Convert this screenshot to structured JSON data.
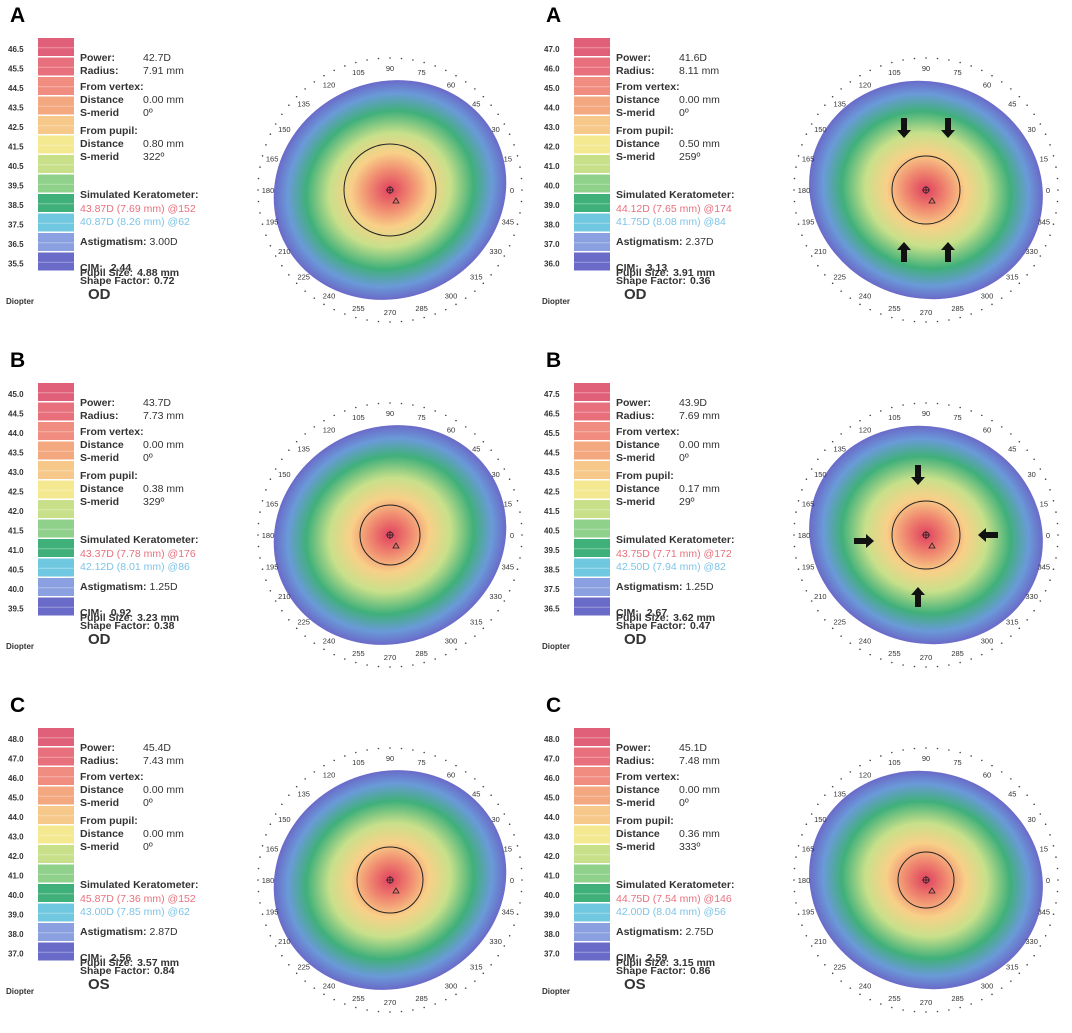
{
  "panels": [
    {
      "letter": "A",
      "scale": [
        "46.5",
        "45.5",
        "44.5",
        "43.5",
        "42.5",
        "41.5",
        "40.5",
        "39.5",
        "38.5",
        "37.5",
        "36.5",
        "35.5"
      ],
      "diopter": "Diopter",
      "power_label": "Power:",
      "power": "42.7D",
      "radius_label": "Radius:",
      "radius": "7.91 mm",
      "vertex_label": "From vertex:",
      "vertex_distance_label": "Distance",
      "vertex_distance": "0.00 mm",
      "vertex_smerid_label": "S-merid",
      "vertex_smerid": "0º",
      "pupil_from_label": "From pupil:",
      "pupil_distance_label": "Distance",
      "pupil_distance": "0.80 mm",
      "pupil_smerid_label": "S-merid",
      "pupil_smerid": "322º",
      "simk_label": "Simulated Keratometer:",
      "simk1": "43.87D (7.69 mm) @152",
      "simk2": "40.87D (8.26 mm) @62",
      "astig_label": "Astigmatism:",
      "astig": "3.00D",
      "cim_label": "CIM:",
      "cim": "2.44",
      "shape_label": "Shape Factor:",
      "shape": "0.72",
      "pupil_size_label": "Pupil Size:",
      "pupil_size": "4.88 mm",
      "eye": "OD"
    },
    {
      "letter": "A",
      "scale": [
        "47.0",
        "46.0",
        "45.0",
        "44.0",
        "43.0",
        "42.0",
        "41.0",
        "40.0",
        "39.0",
        "38.0",
        "37.0",
        "36.0"
      ],
      "diopter": "Diopter",
      "power_label": "Power:",
      "power": "41.6D",
      "radius_label": "Radius:",
      "radius": "8.11 mm",
      "vertex_label": "From vertex:",
      "vertex_distance_label": "Distance",
      "vertex_distance": "0.00 mm",
      "vertex_smerid_label": "S-merid",
      "vertex_smerid": "0º",
      "pupil_from_label": "From pupil:",
      "pupil_distance_label": "Distance",
      "pupil_distance": "0.50 mm",
      "pupil_smerid_label": "S-merid",
      "pupil_smerid": "259º",
      "simk_label": "Simulated Keratometer:",
      "simk1": "44.12D (7.65 mm) @174",
      "simk2": "41.75D (8.08 mm) @84",
      "astig_label": "Astigmatism:",
      "astig": "2.37D",
      "cim_label": "CIM:",
      "cim": "3.13",
      "shape_label": "Shape Factor:",
      "shape": "0.36",
      "pupil_size_label": "Pupil Size:",
      "pupil_size": "3.91 mm",
      "eye": "OD"
    },
    {
      "letter": "B",
      "scale": [
        "45.0",
        "44.5",
        "44.0",
        "43.5",
        "43.0",
        "42.5",
        "42.0",
        "41.5",
        "41.0",
        "40.5",
        "40.0",
        "39.5"
      ],
      "diopter": "Diopter",
      "power_label": "Power:",
      "power": "43.7D",
      "radius_label": "Radius:",
      "radius": "7.73 mm",
      "vertex_label": "From vertex:",
      "vertex_distance_label": "Distance",
      "vertex_distance": "0.00 mm",
      "vertex_smerid_label": "S-merid",
      "vertex_smerid": "0º",
      "pupil_from_label": "From pupil:",
      "pupil_distance_label": "Distance",
      "pupil_distance": "0.38 mm",
      "pupil_smerid_label": "S-merid",
      "pupil_smerid": "329º",
      "simk_label": "Simulated Keratometer:",
      "simk1": "43.37D (7.78 mm) @176",
      "simk2": "42.12D (8.01 mm) @86",
      "astig_label": "Astigmatism:",
      "astig": "1.25D",
      "cim_label": "CIM:",
      "cim": "0.92",
      "shape_label": "Shape Factor:",
      "shape": "0.38",
      "pupil_size_label": "Pupil Size:",
      "pupil_size": "3.23 mm",
      "eye": "OD"
    },
    {
      "letter": "B",
      "scale": [
        "47.5",
        "46.5",
        "45.5",
        "44.5",
        "43.5",
        "42.5",
        "41.5",
        "40.5",
        "39.5",
        "38.5",
        "37.5",
        "36.5"
      ],
      "diopter": "Diopter",
      "power_label": "Power:",
      "power": "43.9D",
      "radius_label": "Radius:",
      "radius": "7.69 mm",
      "vertex_label": "From vertex:",
      "vertex_distance_label": "Distance",
      "vertex_distance": "0.00 mm",
      "vertex_smerid_label": "S-merid",
      "vertex_smerid": "0º",
      "pupil_from_label": "From pupil:",
      "pupil_distance_label": "Distance",
      "pupil_distance": "0.17 mm",
      "pupil_smerid_label": "S-merid",
      "pupil_smerid": "29º",
      "simk_label": "Simulated Keratometer:",
      "simk1": "43.75D (7.71 mm) @172",
      "simk2": "42.50D (7.94 mm) @82",
      "astig_label": "Astigmatism:",
      "astig": "1.25D",
      "cim_label": "CIM:",
      "cim": "2.67",
      "shape_label": "Shape Factor:",
      "shape": "0.47",
      "pupil_size_label": "Pupil Size:",
      "pupil_size": "3.62 mm",
      "eye": "OD"
    },
    {
      "letter": "C",
      "scale": [
        "48.0",
        "47.0",
        "46.0",
        "45.0",
        "44.0",
        "43.0",
        "42.0",
        "41.0",
        "40.0",
        "39.0",
        "38.0",
        "37.0"
      ],
      "diopter": "Diopter",
      "power_label": "Power:",
      "power": "45.4D",
      "radius_label": "Radius:",
      "radius": "7.43 mm",
      "vertex_label": "From vertex:",
      "vertex_distance_label": "Distance",
      "vertex_distance": "0.00 mm",
      "vertex_smerid_label": "S-merid",
      "vertex_smerid": "0º",
      "pupil_from_label": "From pupil:",
      "pupil_distance_label": "Distance",
      "pupil_distance": "0.00 mm",
      "pupil_smerid_label": "S-merid",
      "pupil_smerid": "0º",
      "simk_label": "Simulated Keratometer:",
      "simk1": "45.87D (7.36 mm) @152",
      "simk2": "43.00D (7.85 mm) @62",
      "astig_label": "Astigmatism:",
      "astig": "2.87D",
      "cim_label": "CIM:",
      "cim": "2.56",
      "shape_label": "Shape Factor:",
      "shape": "0.84",
      "pupil_size_label": "Pupil Size:",
      "pupil_size": "3.57 mm",
      "eye": "OS"
    },
    {
      "letter": "C",
      "scale": [
        "48.0",
        "47.0",
        "46.0",
        "45.0",
        "44.0",
        "43.0",
        "42.0",
        "41.0",
        "40.0",
        "39.0",
        "38.0",
        "37.0"
      ],
      "diopter": "Diopter",
      "power_label": "Power:",
      "power": "45.1D",
      "radius_label": "Radius:",
      "radius": "7.48 mm",
      "vertex_label": "From vertex:",
      "vertex_distance_label": "Distance",
      "vertex_distance": "0.00 mm",
      "vertex_smerid_label": "S-merid",
      "vertex_smerid": "0º",
      "pupil_from_label": "From pupil:",
      "pupil_distance_label": "Distance",
      "pupil_distance": "0.36 mm",
      "pupil_smerid_label": "S-merid",
      "pupil_smerid": "333º",
      "simk_label": "Simulated Keratometer:",
      "simk1": "44.75D (7.54 mm) @146",
      "simk2": "42.00D (8.04 mm) @56",
      "astig_label": "Astigmatism:",
      "astig": "2.75D",
      "cim_label": "CIM:",
      "cim": "2.59",
      "shape_label": "Shape Factor:",
      "shape": "0.86",
      "pupil_size_label": "Pupil Size:",
      "pupil_size": "3.15 mm",
      "eye": "OS"
    }
  ],
  "map_angles": [
    "0",
    "15",
    "30",
    "45",
    "60",
    "75",
    "90",
    "105",
    "120",
    "135",
    "150",
    "165",
    "180",
    "195",
    "210",
    "225",
    "240",
    "255",
    "270",
    "285",
    "300",
    "315",
    "330",
    "345"
  ],
  "scale_colors": [
    "#e0607a",
    "#e8707c",
    "#f08c80",
    "#f4a880",
    "#f6c88a",
    "#f4e890",
    "#c8e08a",
    "#8fd08a",
    "#40b07a",
    "#70c8e0",
    "#8aa0e0",
    "#6a6ac8"
  ],
  "simk_colors": {
    "steep": "#e8707c",
    "flat": "#7cc4e8"
  }
}
